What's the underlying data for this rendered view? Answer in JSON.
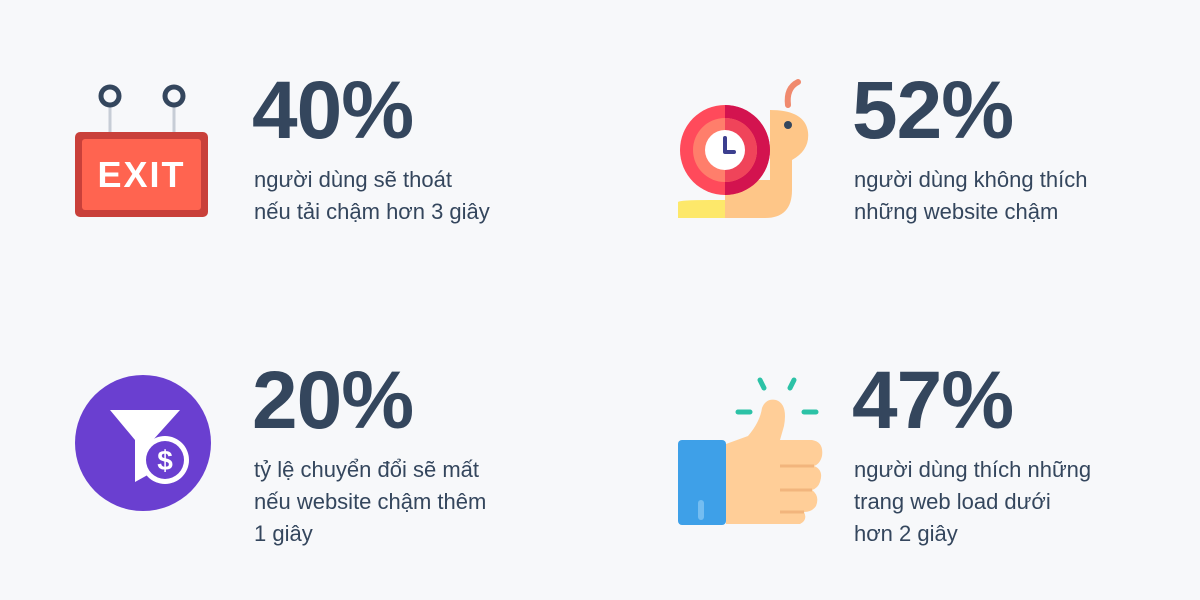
{
  "stats": [
    {
      "icon": "exit-sign-icon",
      "value": "40%",
      "lines": [
        "người dùng sẽ thoát",
        "nếu tải chậm hơn 3 giây"
      ]
    },
    {
      "icon": "snail-clock-icon",
      "value": "52%",
      "lines": [
        "người dùng không thích",
        "những website chậm"
      ]
    },
    {
      "icon": "funnel-dollar-icon",
      "value": "20%",
      "lines": [
        "tỷ lệ chuyển đổi sẽ mất",
        "nếu website chậm thêm",
        "1 giây"
      ]
    },
    {
      "icon": "thumbs-up-icon",
      "value": "47%",
      "lines": [
        "người dùng thích những",
        "trang web load dưới",
        "hơn 2 giây"
      ]
    }
  ],
  "exit_sign_text": "EXIT",
  "colors": {
    "background": "#f7f8fa",
    "text": "#34465d",
    "exit_red": "#e84b3c",
    "funnel_purple": "#6a3fd0",
    "thumb_blue": "#3ea0e8",
    "accent_teal": "#2cc2a6"
  }
}
